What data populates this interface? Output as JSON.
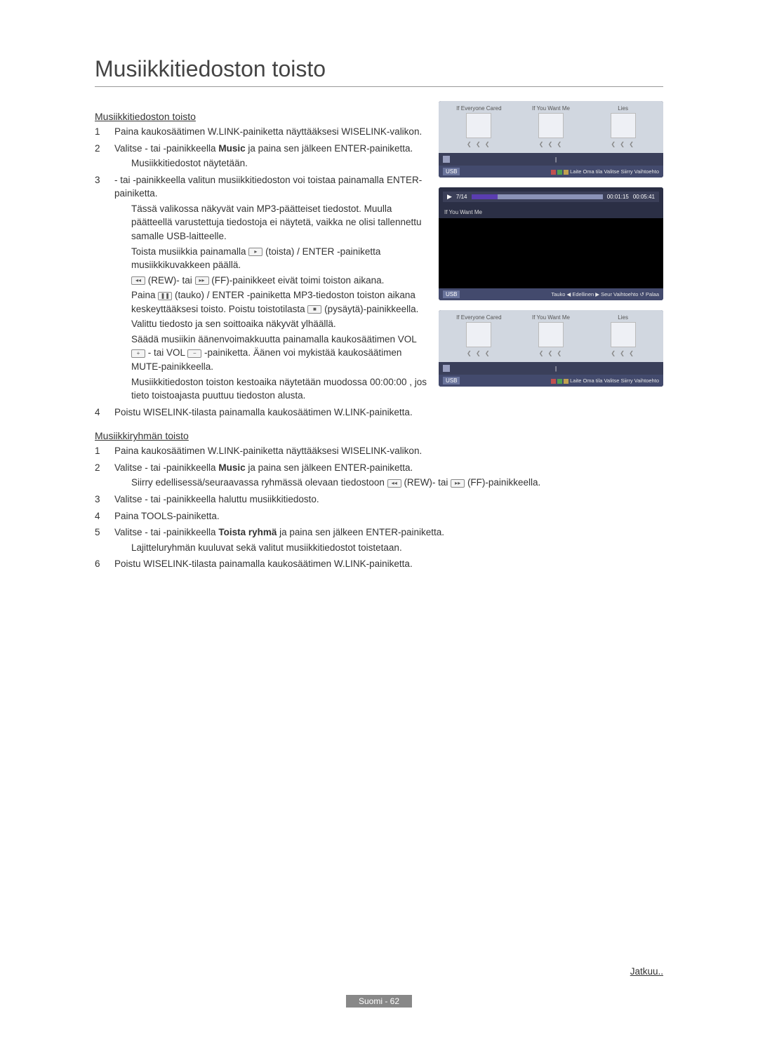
{
  "title": "Musiikkitiedoston toisto",
  "section1": {
    "heading": "Musiikkitiedoston toisto",
    "step1": {
      "num": "1",
      "text": "Paina kaukosäätimen W.LINK-painiketta näyttääksesi WISELINK-valikon."
    },
    "step2": {
      "num": "2",
      "l1_a": "Valitse  - tai  -painikkeella ",
      "l1_b": "Music",
      "l1_c": " ja paina sen jälkeen ENTER-painiketta.",
      "note": "Musiikkitiedostot näytetään."
    },
    "step3": {
      "num": "3",
      "l1": " - tai  -painikkeella valitun musiikkitiedoston voi toistaa painamalla ENTER-painiketta.",
      "n1": "Tässä valikossa näkyvät vain MP3-päätteiset tiedostot. Muulla päätteellä varustettuja tiedostoja ei näytetä, vaikka ne olisi tallennettu samalle USB-laitteelle.",
      "n2a": "Toista musiikkia painamalla ",
      "n2b": " (toista) / ENTER -painiketta musiikkikuvakkeen päällä.",
      "n3a": " (REW)- tai ",
      "n3b": " (FF)-painikkeet eivät toimi toiston aikana.",
      "n4a": "Paina ",
      "n4b": " (tauko) / ENTER -painiketta MP3-tiedoston toiston aikana keskeyttääksesi toisto. Poistu toistotilasta ",
      "n4c": " (pysäytä)-painikkeella.",
      "n5": "Valittu tiedosto ja sen soittoaika näkyvät ylhäällä.",
      "n6a": "Säädä musiikin äänenvoimakkuutta painamalla kaukosäätimen VOL ",
      "n6b": " - tai VOL ",
      "n6c": " -painiketta. Äänen voi mykistää kaukosäätimen MUTE-painikkeella.",
      "n7": "Musiikkitiedoston toiston kestoaika näytetään muodossa 00:00:00 , jos tieto toistoajasta puuttuu tiedoston alusta."
    },
    "step4": {
      "num": "4",
      "text": "Poistu WISELINK-tilasta painamalla kaukosäätimen W.LINK-painiketta."
    }
  },
  "section2": {
    "heading": "Musiikkiryhmän toisto",
    "step1": {
      "num": "1",
      "text": "Paina kaukosäätimen W.LINK-painiketta näyttääksesi WISELINK-valikon."
    },
    "step2": {
      "num": "2",
      "l1_a": "Valitse  - tai  -painikkeella ",
      "l1_b": "Music",
      "l1_c": " ja paina sen jälkeen ENTER-painiketta.",
      "note_a": "Siirry edellisessä/seuraavassa ryhmässä olevaan tiedostoon ",
      "note_b": " (REW)- tai ",
      "note_c": " (FF)-painikkeella."
    },
    "step3": {
      "num": "3",
      "text": "Valitse  - tai  -painikkeella haluttu musiikkitiedosto."
    },
    "step4": {
      "num": "4",
      "text": "Paina TOOLS-painiketta."
    },
    "step5": {
      "num": "5",
      "l1_a": "Valitse  - tai  -painikkeella ",
      "l1_b": "Toista ryhmä",
      "l1_c": " ja paina sen jälkeen ENTER-painiketta.",
      "note": "Lajitteluryhmän kuuluvat sekä valitut musiikkitiedostot toistetaan."
    },
    "step6": {
      "num": "6",
      "text": "Poistu WISELINK-tilasta painamalla kaukosäätimen W.LINK-painiketta."
    }
  },
  "panels": {
    "thumbs": [
      "If Everyone Cared",
      "If You Want Me",
      "Lies"
    ],
    "pager": "❮ ❮ ❮",
    "usb": "USB",
    "footer1": "Laite    Oma tila    Valitse    Siirry       Vaihtoehto",
    "player": {
      "pos": "7/14",
      "elapsed": "00:01:15",
      "total": "00:05:41",
      "title": "If You Want Me",
      "footer": "Tauko  ◀ Edellinen ▶ Seur      Vaihtoehto  ↺ Palaa"
    }
  },
  "continue": "Jatkuu..",
  "pagenum": "Suomi - 62"
}
